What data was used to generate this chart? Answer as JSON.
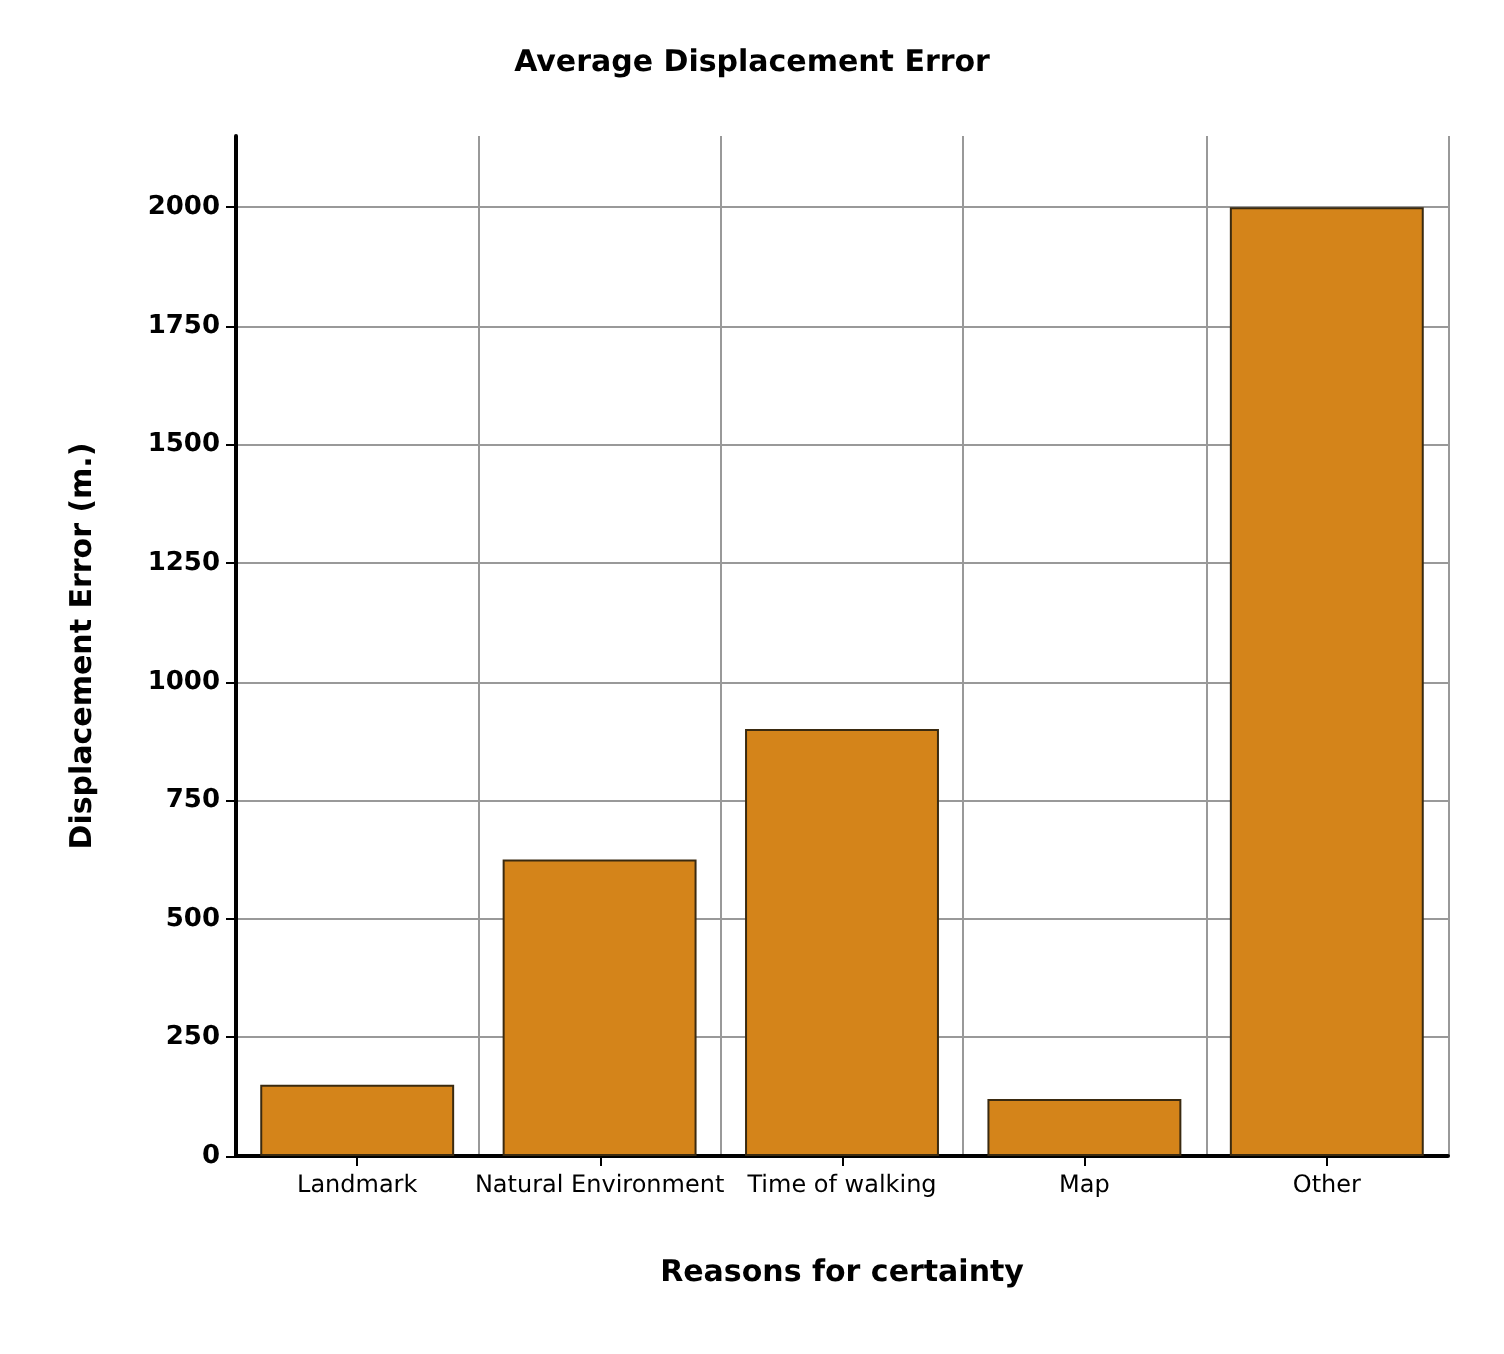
{
  "chart_data": {
    "type": "bar",
    "title": "Average Displacement Error",
    "xlabel": "Reasons for certainty",
    "ylabel": "Displacement Error (m.)",
    "categories": [
      "Landmark",
      "Natural Environment",
      "Time of walking",
      "Map",
      "Other"
    ],
    "values": [
      150,
      625,
      900,
      120,
      2000
    ],
    "color": "#d4841a",
    "ylim": [
      0,
      2150
    ],
    "yticks": [
      0,
      250,
      500,
      750,
      1000,
      1250,
      1500,
      1750,
      2000
    ],
    "grid": true
  }
}
